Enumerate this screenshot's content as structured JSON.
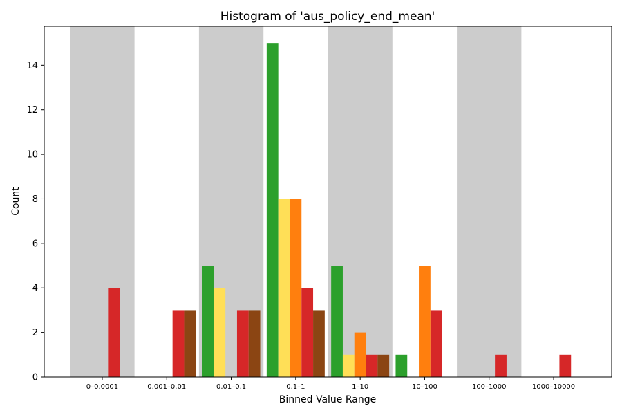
{
  "chart_data": {
    "type": "bar",
    "title": "Histogram of 'aus_policy_end_mean'",
    "xlabel": "Binned Value Range",
    "ylabel": "Count",
    "categories": [
      "0–0.0001",
      "0.001–0.01",
      "0.01–0.1",
      "0.1–1",
      "1–10",
      "10–100",
      "100–1000",
      "1000–10000"
    ],
    "ylim": [
      0,
      15.75
    ],
    "yticks": [
      0,
      2,
      4,
      6,
      8,
      10,
      12,
      14
    ],
    "legend": "none",
    "grid": false,
    "shaded_bands": [
      0,
      2,
      4,
      6
    ],
    "band_color": "#cccccc",
    "series": [
      {
        "color": "#2ca02c",
        "values": [
          0,
          0,
          5,
          15,
          5,
          1,
          0,
          0
        ]
      },
      {
        "color": "#ffdf57",
        "values": [
          0,
          0,
          4,
          8,
          1,
          0,
          0,
          0
        ]
      },
      {
        "color": "#ff7f0e",
        "values": [
          0,
          0,
          0,
          8,
          2,
          5,
          0,
          0
        ]
      },
      {
        "color": "#d62728",
        "values": [
          4,
          3,
          3,
          4,
          1,
          3,
          1,
          1
        ]
      },
      {
        "color": "#8b4513",
        "values": [
          0,
          3,
          3,
          3,
          1,
          0,
          0,
          0
        ]
      }
    ]
  }
}
